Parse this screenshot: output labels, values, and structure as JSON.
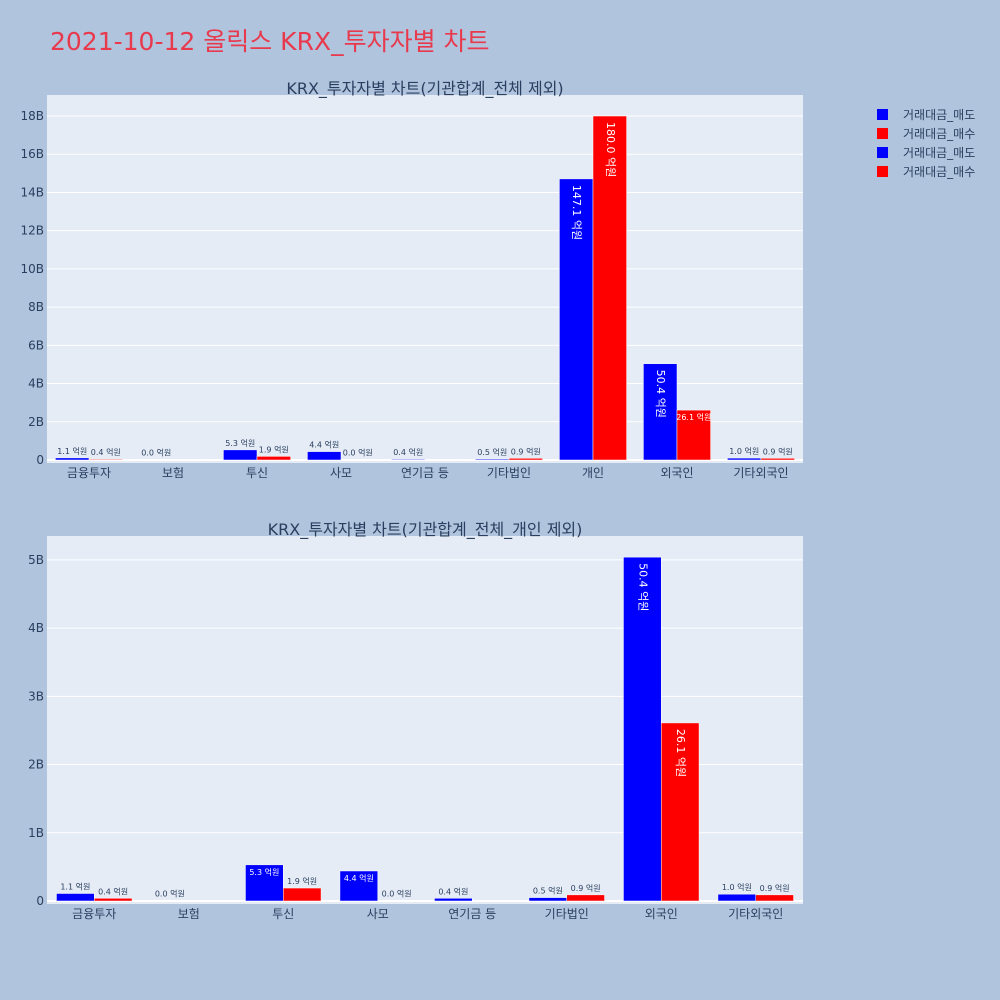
{
  "title": "2021-10-12 올릭스 KRX_투자자별 차트",
  "legend": [
    {
      "label": "거래대금_매도",
      "color": "#0000ff"
    },
    {
      "label": "거래대금_매수",
      "color": "#ff0000"
    },
    {
      "label": "거래대금_매도",
      "color": "#0000ff"
    },
    {
      "label": "거래대금_매수",
      "color": "#ff0000"
    }
  ],
  "chart_data": [
    {
      "type": "bar",
      "title": "KRX_투자자별 차트(기관합계_전체 제외)",
      "categories": [
        "금융투자",
        "보험",
        "투신",
        "사모",
        "연기금 등",
        "기타법인",
        "개인",
        "외국인",
        "기타외국인"
      ],
      "y_tick_labels": [
        "0",
        "2B",
        "4B",
        "6B",
        "8B",
        "10B",
        "12B",
        "14B",
        "16B",
        "18B"
      ],
      "ylim": [
        0,
        19.1
      ],
      "series": [
        {
          "name": "거래대금_매도",
          "color": "#0000ff",
          "values": [
            0.11,
            0.0,
            0.53,
            0.44,
            0.04,
            0.05,
            14.71,
            5.04,
            0.1
          ],
          "labels": [
            "1.1 억원",
            "0.0 억원",
            "5.3 억원",
            "4.4 억원",
            "0.4 억원",
            "0.5 억원",
            "147.1 억원",
            "50.4 억원",
            "1.0 억원"
          ]
        },
        {
          "name": "거래대금_매수",
          "color": "#ff0000",
          "values": [
            0.04,
            0.0,
            0.19,
            0.0,
            0.0,
            0.09,
            18.0,
            2.61,
            0.09
          ],
          "labels": [
            "0.4 억원",
            "",
            "1.9 억원",
            "0.0 억원",
            "",
            "0.9 억원",
            "180.0 억원",
            "26.1 억원",
            "0.9 억원"
          ]
        }
      ]
    },
    {
      "type": "bar",
      "title": "KRX_투자자별 차트(기관합계_전체_개인 제외)",
      "categories": [
        "금융투자",
        "보험",
        "투신",
        "사모",
        "연기금 등",
        "기타법인",
        "외국인",
        "기타외국인"
      ],
      "y_tick_labels": [
        "0",
        "1B",
        "2B",
        "3B",
        "4B",
        "5B"
      ],
      "ylim": [
        0,
        5.35
      ],
      "series": [
        {
          "name": "거래대금_매도",
          "color": "#0000ff",
          "values": [
            0.11,
            0.0,
            0.53,
            0.44,
            0.04,
            0.05,
            5.04,
            0.1
          ],
          "labels": [
            "1.1 억원",
            "0.0 억원",
            "5.3 억원",
            "4.4 억원",
            "0.4 억원",
            "0.5 억원",
            "50.4 억원",
            "1.0 억원"
          ]
        },
        {
          "name": "거래대금_매수",
          "color": "#ff0000",
          "values": [
            0.04,
            0.0,
            0.19,
            0.0,
            0.0,
            0.09,
            2.61,
            0.09
          ],
          "labels": [
            "0.4 억원",
            "",
            "1.9 억원",
            "0.0 억원",
            "",
            "0.9 억원",
            "26.1 억원",
            "0.9 억원"
          ]
        }
      ]
    }
  ]
}
